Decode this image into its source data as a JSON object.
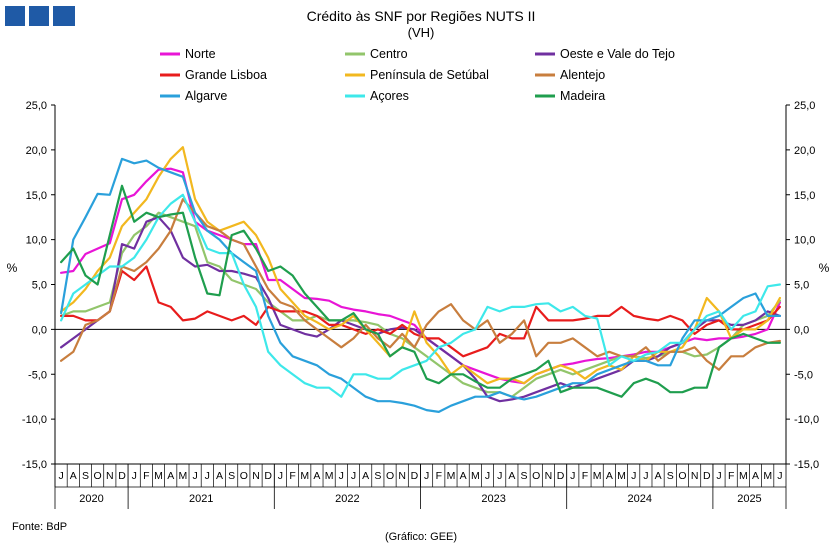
{
  "header": {
    "logo_colors": [
      "#1f5aa6",
      "#1f5aa6",
      "#1f5aa6"
    ]
  },
  "chart_data": {
    "type": "line",
    "title": "Crédito às SNF por Regiões NUTS II",
    "subtitle": "(VH)",
    "ylabel_left": "%",
    "ylabel_right": "%",
    "ylim": [
      -15,
      25
    ],
    "yticks": [
      "-15,0",
      "-10,0",
      "-5,0",
      "0,0",
      "5,0",
      "10,0",
      "15,0",
      "20,0",
      "25,0"
    ],
    "grid": false,
    "legend": "top",
    "month_labels": [
      "J",
      "A",
      "S",
      "O",
      "N",
      "D",
      "J",
      "F",
      "M",
      "A",
      "M",
      "J",
      "J",
      "A",
      "S",
      "O",
      "N",
      "D",
      "J",
      "F",
      "M",
      "A",
      "M",
      "J",
      "J",
      "A",
      "S",
      "O",
      "N",
      "D",
      "J",
      "F",
      "M",
      "A",
      "M",
      "J",
      "J",
      "A",
      "S",
      "O",
      "N",
      "D",
      "J",
      "F",
      "M",
      "A",
      "M",
      "J",
      "J",
      "A",
      "S",
      "O",
      "N",
      "D",
      "J",
      "F",
      "M",
      "A",
      "M",
      "J"
    ],
    "year_labels": [
      {
        "label": "2020",
        "start": 0,
        "end": 5
      },
      {
        "label": "2021",
        "start": 6,
        "end": 17
      },
      {
        "label": "2022",
        "start": 18,
        "end": 29
      },
      {
        "label": "2023",
        "start": 30,
        "end": 41
      },
      {
        "label": "2024",
        "start": 42,
        "end": 53
      },
      {
        "label": "2025",
        "start": 54,
        "end": 59
      }
    ],
    "series": [
      {
        "name": "Norte",
        "color": "#e815d6",
        "values": [
          6.3,
          6.5,
          8.4,
          9,
          9.6,
          14.5,
          15,
          16.5,
          17.8,
          17.9,
          17.5,
          12,
          11,
          10.5,
          10,
          9.5,
          9.5,
          5.5,
          5.5,
          4.5,
          3.5,
          3.4,
          3.2,
          2.5,
          2.2,
          2,
          1.7,
          1.5,
          1,
          0.5,
          -1,
          -2,
          -3,
          -4,
          -4.5,
          -5,
          -5.5,
          -5.8,
          -6,
          -5,
          -4.5,
          -4,
          -3.8,
          -3.5,
          -3.3,
          -3.2,
          -3,
          -2.8,
          -2.5,
          -2.5,
          -2,
          -1.5,
          -1,
          -1.2,
          -1,
          -1,
          -0.8,
          -0.5,
          0,
          3
        ]
      },
      {
        "name": "Centro",
        "color": "#92c56b",
        "values": [
          1.5,
          2,
          2,
          2.5,
          3,
          8.5,
          10.5,
          11.5,
          13,
          12.5,
          12,
          11.5,
          7.5,
          7,
          5.5,
          5,
          4.5,
          3,
          2,
          1,
          1,
          1.5,
          1,
          1,
          1,
          0.8,
          0.5,
          -0.5,
          -1,
          -2,
          -3,
          -4,
          -5,
          -6,
          -6.5,
          -7,
          -7,
          -7.5,
          -6.5,
          -5.5,
          -5,
          -4.5,
          -5,
          -4.5,
          -4,
          -3.5,
          -3,
          -3,
          -3.2,
          -3,
          -2.5,
          -2.5,
          -3,
          -2.8,
          -2,
          -1,
          0.5,
          1,
          1.5,
          3.2
        ]
      },
      {
        "name": "Oeste e Vale do Tejo",
        "color": "#7030a0",
        "values": [
          -2,
          -1,
          0,
          1,
          2,
          9.5,
          9,
          12,
          12.5,
          11,
          8,
          7,
          7.2,
          6.5,
          6.5,
          6.2,
          5.8,
          3.5,
          0.5,
          0,
          -0.5,
          -0.8,
          0,
          1,
          0.5,
          0,
          -0.5,
          0,
          0.2,
          0,
          -1,
          -2,
          -3,
          -4,
          -5.5,
          -7.5,
          -8,
          -7.8,
          -7.5,
          -7,
          -6.5,
          -6,
          -6.5,
          -6,
          -5.5,
          -5,
          -4.5,
          -3.5,
          -3.5,
          -3,
          -2,
          -1.5,
          0,
          1,
          1,
          0.5,
          0.5,
          1,
          2,
          1.5
        ]
      },
      {
        "name": "Grande Lisboa",
        "color": "#e81c1c",
        "values": [
          1.5,
          1.5,
          1,
          1,
          2,
          6.5,
          5.5,
          7,
          3,
          2.5,
          1,
          1.2,
          2,
          1.5,
          1,
          1.5,
          0.5,
          2.5,
          2,
          2,
          2,
          1.5,
          0.5,
          0.5,
          0,
          -0.5,
          0,
          -0.5,
          0.5,
          -0.5,
          -1,
          -1,
          -2,
          -3,
          -2.5,
          -2,
          -0.5,
          -1,
          -1,
          2.5,
          1,
          1,
          1,
          1.2,
          1.5,
          1.5,
          2.5,
          1.5,
          1.2,
          1,
          1.5,
          1,
          -0.5,
          0.5,
          1,
          0,
          0,
          0.5,
          1,
          2.5
        ]
      },
      {
        "name": "Península de Setúbal",
        "color": "#f2b81f",
        "values": [
          2,
          3,
          4.5,
          6.5,
          8,
          11.5,
          13,
          14.5,
          17,
          19,
          20.3,
          14.5,
          12,
          11,
          11.5,
          12,
          10.5,
          8,
          4.5,
          3,
          1.5,
          0.8,
          0,
          0.5,
          1.5,
          0,
          -1.5,
          -3,
          -2,
          2,
          -1.5,
          -3,
          -5,
          -4,
          -5,
          -6,
          -5.5,
          -5.5,
          -6,
          -5,
          -4.5,
          -4,
          -4.5,
          -5.5,
          -4.5,
          -4,
          -4.5,
          -3,
          -3.5,
          -2.5,
          -2.5,
          -2,
          0,
          3.5,
          2,
          -1,
          0,
          0,
          1,
          3.5
        ]
      },
      {
        "name": "Alentejo",
        "color": "#c87e3e",
        "values": [
          -3.5,
          -2.5,
          0.5,
          1,
          2,
          7,
          6.5,
          7.5,
          9,
          11,
          14.5,
          13,
          11.5,
          11,
          10,
          9.5,
          7,
          4.5,
          3,
          2.5,
          1,
          0,
          -1,
          -2,
          -1,
          0.5,
          -1,
          -2,
          -0.5,
          -2,
          0.5,
          2,
          2.8,
          1,
          0,
          1,
          -1.5,
          -0.5,
          1,
          -3,
          -1.5,
          -1.5,
          -1,
          -2,
          -3,
          -2.5,
          -3,
          -3,
          -2,
          -3.5,
          -2.5,
          -2.5,
          -2,
          -3.5,
          -4.5,
          -3,
          -3,
          -2,
          -1.5,
          -1.3
        ]
      },
      {
        "name": "Algarve",
        "color": "#2aa0db",
        "values": [
          1.8,
          10,
          12.5,
          15.1,
          15,
          19,
          18.5,
          18.8,
          18,
          17.5,
          17,
          13,
          11,
          10,
          8.5,
          7.5,
          6.5,
          1.5,
          -1.5,
          -3,
          -3.5,
          -4,
          -5,
          -5.5,
          -6.5,
          -7.5,
          -8,
          -8,
          -8.2,
          -8.5,
          -9,
          -9.2,
          -8.5,
          -8,
          -7.5,
          -7.5,
          -7,
          -7.5,
          -7.8,
          -7.5,
          -7,
          -6.5,
          -6,
          -6,
          -5,
          -4.5,
          -4,
          -3.5,
          -3.5,
          -4,
          -4,
          -1,
          1,
          1,
          1.5,
          2.5,
          3.5,
          4,
          1.5,
          1.5
        ]
      },
      {
        "name": "Açores",
        "color": "#3ee8ea",
        "values": [
          1,
          4,
          5,
          6,
          7,
          7,
          8,
          10,
          12.5,
          14,
          15,
          12,
          9,
          8.5,
          8.5,
          5,
          2.5,
          -2.5,
          -4,
          -5,
          -6,
          -6.5,
          -6.5,
          -7.5,
          -5,
          -5,
          -5.5,
          -5.5,
          -4.5,
          -4,
          -3.5,
          -2,
          -1.5,
          -0.5,
          0,
          2.5,
          2,
          2.5,
          2.5,
          2.8,
          2.9,
          2,
          2.5,
          1.5,
          1.2,
          -4,
          -3,
          -3.5,
          -2.8,
          -2.5,
          -1.5,
          -1.5,
          0,
          1.5,
          2,
          0,
          1.5,
          2,
          4.8,
          5
        ]
      },
      {
        "name": "Madeira",
        "color": "#1f9e4e",
        "values": [
          7.5,
          9,
          6,
          5,
          10.5,
          16,
          12,
          13,
          12.5,
          12.8,
          13,
          8,
          4,
          3.8,
          10.5,
          11,
          9,
          6.5,
          7,
          6,
          4,
          2.5,
          1,
          1,
          1.8,
          0,
          -0.5,
          -3,
          -2,
          -2.5,
          -5.5,
          -6,
          -5,
          -5,
          -5.8,
          -6.5,
          -6.5,
          -5.5,
          -5,
          -4.5,
          -3.5,
          -7,
          -6.5,
          -6.5,
          -6.5,
          -7,
          -7.5,
          -6,
          -5.5,
          -6,
          -7,
          -7,
          -6.5,
          -6.5,
          -2,
          -1,
          -0.5,
          -1,
          -1.5,
          -1.5
        ]
      }
    ]
  },
  "footer": {
    "source": "Fonte: BdP",
    "credit": "(Gráfico: GEE)"
  }
}
